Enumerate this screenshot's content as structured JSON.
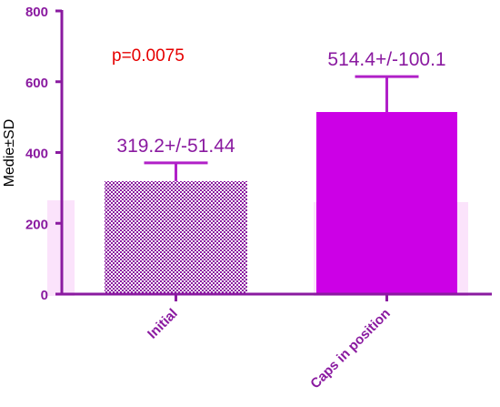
{
  "chart_data": {
    "type": "bar",
    "categories": [
      "Initial",
      "Caps in position"
    ],
    "values": [
      319.2,
      514.4
    ],
    "errors": [
      51.44,
      100.1
    ],
    "data_labels": [
      "319.2+/-51.44",
      "514.4+/-100.1"
    ],
    "ylabel": "Medie±SD",
    "ylim": [
      0,
      800
    ],
    "yticks": [
      "0",
      "200",
      "400",
      "600",
      "800"
    ],
    "annotation": "p=0.0075",
    "grid": false
  },
  "colors": {
    "axis": "#8a1aa0",
    "bar_checker_dark": "#8a1aa0",
    "bar_checker_light": "#ffffff",
    "bar_solid": "#cc00e6",
    "error_bar": "#b020c8",
    "annotation": "#e60000"
  }
}
